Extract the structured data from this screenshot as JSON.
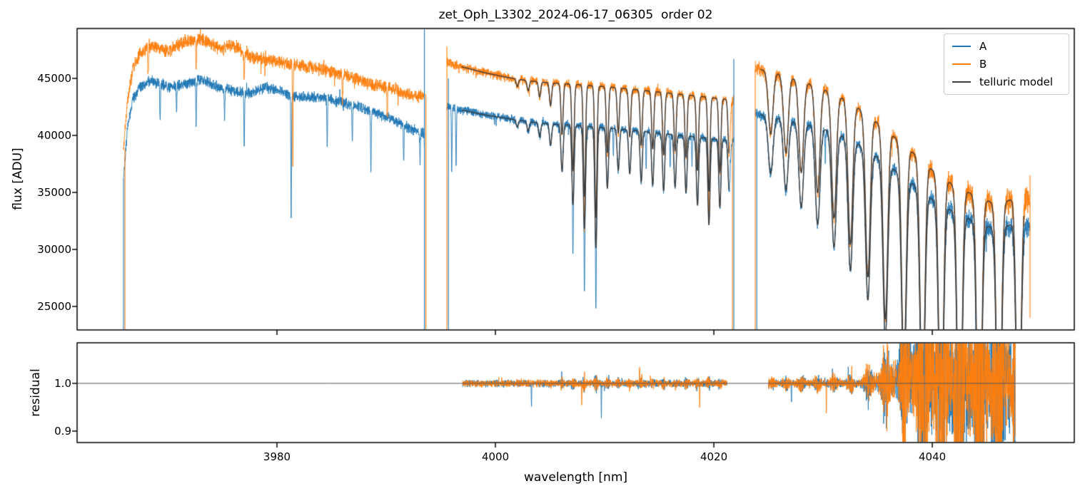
{
  "chart_data": {
    "type": "line",
    "title": "zet_Oph_L3302_2024-06-17_06305  order 02",
    "xlabel": "wavelength [nm]",
    "background": "#ffffff",
    "frame_color": "#000000",
    "legend": {
      "position": "upper right",
      "items": [
        {
          "label": "A",
          "color": "#1f77b4"
        },
        {
          "label": "B",
          "color": "#ff7f0e"
        },
        {
          "label": "telluric model",
          "color": "#3d3d3d"
        }
      ]
    },
    "panels": [
      {
        "name": "flux",
        "ylabel": "flux [ADU]",
        "xlim": [
          3961.7,
          4053.0
        ],
        "ylim": [
          22940,
          49375
        ],
        "yticks": [
          25000,
          30000,
          35000,
          40000,
          45000
        ],
        "xticks": [
          3980,
          4000,
          4020,
          4040
        ],
        "show_xtick_labels": false,
        "grid": false
      },
      {
        "name": "residual",
        "ylabel": "residual",
        "xlim": [
          3961.7,
          4053.0
        ],
        "ylim": [
          0.876,
          1.085
        ],
        "yticks": [
          0.9,
          1.0
        ],
        "xticks": [
          3980,
          4000,
          4020,
          4040
        ],
        "show_xtick_labels": true,
        "hline": {
          "y": 1.0,
          "color": "#555555"
        },
        "grid": false
      }
    ],
    "series": [
      {
        "name": "A",
        "color": "#1f77b4"
      },
      {
        "name": "B",
        "color": "#ff7f0e"
      },
      {
        "name": "telluric model",
        "color": "#3d3d3d"
      }
    ],
    "segments": [
      {
        "range": [
          3965.95,
          3993.53
        ],
        "continuum_A": [
          [
            3965.95,
            36300
          ],
          [
            3966.3,
            40500
          ],
          [
            3966.8,
            43200
          ],
          [
            3967.5,
            44300
          ],
          [
            3968.5,
            44800
          ],
          [
            3970,
            44200
          ],
          [
            3971.5,
            44500
          ],
          [
            3973,
            44900
          ],
          [
            3974.5,
            44300
          ],
          [
            3976,
            43900
          ],
          [
            3977.5,
            43700
          ],
          [
            3979,
            44200
          ],
          [
            3980.5,
            43800
          ],
          [
            3982,
            43300
          ],
          [
            3983.5,
            43400
          ],
          [
            3985,
            43100
          ],
          [
            3986.5,
            42800
          ],
          [
            3988,
            42300
          ],
          [
            3989.5,
            41800
          ],
          [
            3991,
            41200
          ],
          [
            3992.5,
            40500
          ],
          [
            3993.53,
            40100
          ]
        ],
        "continuum_B": [
          [
            3965.95,
            38800
          ],
          [
            3966.3,
            43000
          ],
          [
            3966.8,
            45800
          ],
          [
            3967.5,
            47200
          ],
          [
            3968.5,
            47900
          ],
          [
            3970,
            47400
          ],
          [
            3971.5,
            48200
          ],
          [
            3973,
            48500
          ],
          [
            3974.5,
            47700
          ],
          [
            3976,
            47900
          ],
          [
            3977.5,
            46900
          ],
          [
            3979,
            46600
          ],
          [
            3980.5,
            46400
          ],
          [
            3982,
            46200
          ],
          [
            3983.5,
            45900
          ],
          [
            3985,
            45600
          ],
          [
            3986.5,
            45200
          ],
          [
            3988,
            44700
          ],
          [
            3989.5,
            44300
          ],
          [
            3991,
            43900
          ],
          [
            3992.5,
            43500
          ],
          [
            3993.53,
            43400
          ]
        ],
        "noise_A": 550,
        "noise_B": 650,
        "telluric_lines": [],
        "line_width_nm": 0.14,
        "down_spikes_A": [
          [
            3969.3,
            3200
          ],
          [
            3970.8,
            2400
          ],
          [
            3972.6,
            3800
          ],
          [
            3975.2,
            2600
          ],
          [
            3977.0,
            4800
          ],
          [
            3981.3,
            10500
          ],
          [
            3984.6,
            4200
          ],
          [
            3986.9,
            3000
          ],
          [
            3988.6,
            5200
          ],
          [
            3991.6,
            3400
          ],
          [
            3993.1,
            2600
          ]
        ],
        "down_spikes_B": [
          [
            3968.2,
            2200
          ],
          [
            3972.6,
            2600
          ],
          [
            3977.0,
            2400
          ],
          [
            3981.45,
            8500
          ],
          [
            3986.0,
            2200
          ],
          [
            3990.1,
            2600
          ]
        ]
      },
      {
        "range": [
          3995.56,
          4021.83
        ],
        "continuum_A": [
          [
            3995.56,
            42500
          ],
          [
            3997,
            42200
          ],
          [
            3999,
            41800
          ],
          [
            4001,
            41500
          ],
          [
            4003,
            41200
          ],
          [
            4005,
            41000
          ],
          [
            4007,
            40900
          ],
          [
            4009,
            40750
          ],
          [
            4011,
            40600
          ],
          [
            4013,
            40400
          ],
          [
            4015,
            40200
          ],
          [
            4017,
            40000
          ],
          [
            4019,
            39800
          ],
          [
            4021.83,
            39500
          ]
        ],
        "continuum_B": [
          [
            3995.56,
            46400
          ],
          [
            3997,
            46000
          ],
          [
            3999,
            45500
          ],
          [
            4001,
            45100
          ],
          [
            4003,
            44800
          ],
          [
            4005,
            44600
          ],
          [
            4007,
            44500
          ],
          [
            4009,
            44350
          ],
          [
            4011,
            44200
          ],
          [
            4013,
            44000
          ],
          [
            4015,
            43800
          ],
          [
            4017,
            43600
          ],
          [
            4019,
            43400
          ],
          [
            4021.83,
            43100
          ]
        ],
        "noise_A": 430,
        "noise_B": 480,
        "telluric_lines": [
          [
            4002.0,
            0.015
          ],
          [
            4003.0,
            0.02
          ],
          [
            4004.05,
            0.03
          ],
          [
            4005.05,
            0.045
          ],
          [
            4006.1,
            0.1
          ],
          [
            4007.1,
            0.17
          ],
          [
            4008.15,
            0.22
          ],
          [
            4009.2,
            0.26
          ],
          [
            4010.25,
            0.13
          ],
          [
            4011.25,
            0.09
          ],
          [
            4012.3,
            0.095
          ],
          [
            4013.35,
            0.11
          ],
          [
            4014.4,
            0.115
          ],
          [
            4015.4,
            0.125
          ],
          [
            4016.45,
            0.115
          ],
          [
            4017.45,
            0.125
          ],
          [
            4018.5,
            0.15
          ],
          [
            4019.55,
            0.19
          ],
          [
            4020.55,
            0.15
          ],
          [
            4021.4,
            0.11
          ]
        ],
        "line_width_nm": 0.14,
        "down_spikes_A": [
          [
            3996.0,
            5500
          ],
          [
            3996.4,
            4800
          ],
          [
            4007.1,
            4500
          ],
          [
            4008.15,
            5500
          ],
          [
            4009.2,
            5200
          ],
          [
            4010.8,
            2500
          ],
          [
            4013.8,
            3500
          ],
          [
            4016.0,
            2800
          ],
          [
            4018.0,
            2500
          ]
        ],
        "down_spikes_B": [
          [
            4008.15,
            3000
          ],
          [
            4019.55,
            2600
          ]
        ]
      },
      {
        "range": [
          4023.79,
          4048.95
        ],
        "continuum_A": [
          [
            4023.79,
            41900
          ],
          [
            4026,
            41500
          ],
          [
            4028,
            41100
          ],
          [
            4030,
            40600
          ],
          [
            4032,
            39900
          ],
          [
            4034,
            38800
          ],
          [
            4036,
            37400
          ],
          [
            4038,
            35900
          ],
          [
            4040,
            34400
          ],
          [
            4042,
            33300
          ],
          [
            4044,
            32400
          ],
          [
            4045.5,
            31900
          ],
          [
            4047,
            32100
          ],
          [
            4048,
            32600
          ],
          [
            4048.95,
            31800
          ]
        ],
        "continuum_B": [
          [
            4023.79,
            45900
          ],
          [
            4026,
            45400
          ],
          [
            4028,
            44800
          ],
          [
            4030,
            44100
          ],
          [
            4032,
            43200
          ],
          [
            4034,
            41900
          ],
          [
            4036,
            40300
          ],
          [
            4038,
            38700
          ],
          [
            4040,
            37000
          ],
          [
            4042,
            35600
          ],
          [
            4044,
            34700
          ],
          [
            4045.5,
            34100
          ],
          [
            4047,
            34300
          ],
          [
            4048,
            34900
          ],
          [
            4048.95,
            34000
          ]
        ],
        "noise_A": 600,
        "noise_B": 700,
        "noise_growth": {
          "start": 4035,
          "per_nm": 0.085
        },
        "telluric_lines": [
          [
            4025.2,
            0.12
          ],
          [
            4026.6,
            0.15
          ],
          [
            4028.0,
            0.18
          ],
          [
            4029.5,
            0.21
          ],
          [
            4031.0,
            0.25
          ],
          [
            4032.5,
            0.29
          ],
          [
            4034.1,
            0.34
          ],
          [
            4035.7,
            0.41
          ],
          [
            4037.4,
            0.49
          ],
          [
            4039.1,
            0.57
          ],
          [
            4040.8,
            0.64
          ],
          [
            4042.5,
            0.7
          ],
          [
            4044.3,
            0.74
          ],
          [
            4046.1,
            0.72
          ],
          [
            4047.9,
            0.66
          ]
        ],
        "line_width_nm": 0.3,
        "down_spikes_A": [
          [
            4030.2,
            2500
          ],
          [
            4035.7,
            3000
          ],
          [
            4037.4,
            3800
          ],
          [
            4039.1,
            3600
          ],
          [
            4044.0,
            3000
          ]
        ],
        "down_spikes_B": [
          [
            4037.4,
            2800
          ],
          [
            4040.8,
            3000
          ],
          [
            4046.0,
            2800
          ]
        ]
      }
    ],
    "model": {
      "color": "#3d3d3d",
      "ranges": [
        [
          3996.9,
          4021.4
        ],
        [
          4024.3,
          4048.4
        ]
      ]
    },
    "edge_spikes": [
      {
        "lambda": 3965.95,
        "series": "A",
        "v": [
          22940,
          36300
        ]
      },
      {
        "lambda": 3966.08,
        "series": "B",
        "v": [
          22940,
          38800
        ]
      },
      {
        "lambda": 3993.5,
        "series": "A",
        "v": [
          22940,
          49300
        ]
      },
      {
        "lambda": 3993.63,
        "series": "B",
        "v": [
          22940,
          43600
        ]
      },
      {
        "lambda": 3995.56,
        "series": "B",
        "v": [
          22940,
          47800
        ]
      },
      {
        "lambda": 3995.7,
        "series": "A",
        "v": [
          22940,
          45000
        ]
      },
      {
        "lambda": 4021.83,
        "series": "A",
        "v": [
          22940,
          46700
        ]
      },
      {
        "lambda": 4021.7,
        "series": "B",
        "v": [
          22940,
          43400
        ]
      },
      {
        "lambda": 4023.79,
        "series": "B",
        "v": [
          22940,
          45800
        ]
      },
      {
        "lambda": 4023.93,
        "series": "A",
        "v": [
          22940,
          42300
        ]
      },
      {
        "lambda": 4048.95,
        "series": "B",
        "v": [
          24000,
          36500
        ]
      }
    ],
    "residual_regions": [
      {
        "range": [
          3997.0,
          4021.2
        ],
        "segment_index": 1,
        "sigma": 0.0085,
        "spikes": [
          [
            4003.3,
            -0.045,
            "A"
          ],
          [
            4007.9,
            -0.04,
            "B"
          ],
          [
            4009.7,
            -0.067,
            "A"
          ],
          [
            4013.2,
            0.04,
            "B"
          ],
          [
            4018.7,
            -0.052,
            "B"
          ]
        ]
      },
      {
        "range": [
          4025.0,
          4047.6
        ],
        "segment_index": 2,
        "sigma": 0.009,
        "growth_start": 4033.0,
        "growth_scale": 2.2,
        "sigma_max": 0.13,
        "bias": {
          "center": 4038.5,
          "width": 2.5,
          "amp": 0.015
        },
        "spikes": [
          [
            4027.1,
            -0.035,
            "A"
          ],
          [
            4030.3,
            -0.06,
            "B"
          ]
        ]
      }
    ]
  }
}
